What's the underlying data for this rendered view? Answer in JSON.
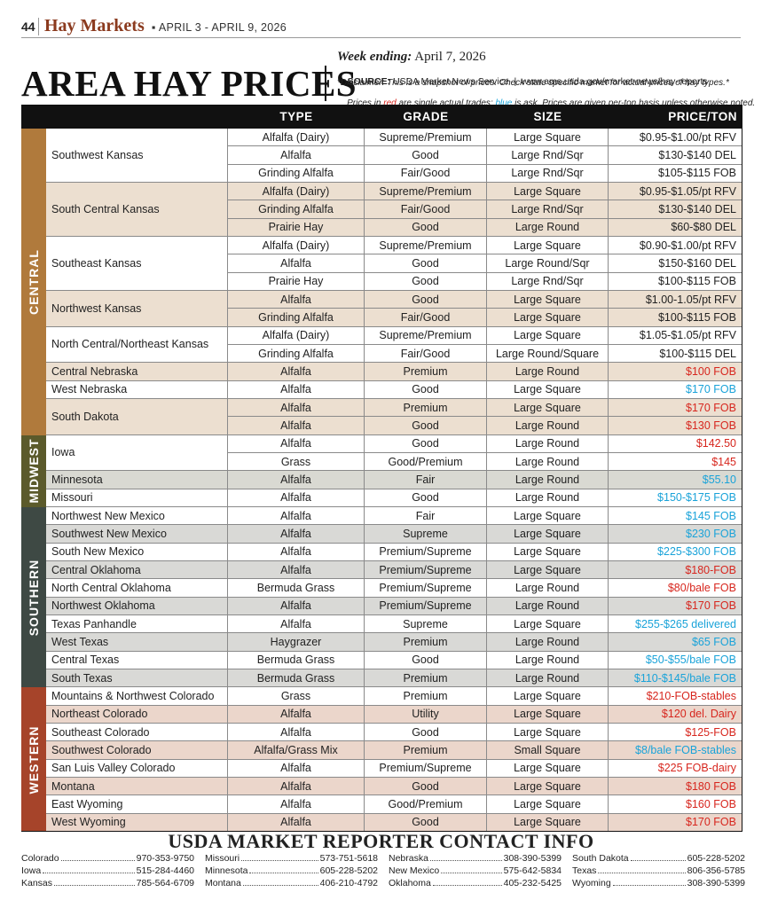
{
  "header": {
    "page_number": "44",
    "section": "Hay Markets",
    "dates": "▪ APRIL 3 - APRIL 9, 2026"
  },
  "title": "AREA HAY PRICES",
  "week_ending_label": "Week ending:",
  "week_ending": "April 7, 2026",
  "source_label": "SOURCE:",
  "source": "USDA Market News Service  |  www.ams.usda.gov/market-news/hay-reports",
  "disclaimer": "*Disclaimer: This is a snapshot of prices. Check state specific market for actual prices of hay types.*",
  "legend_note": [
    "Prices in ",
    "red",
    " are single actual trades; ",
    "blue",
    " is ask. Prices are given per-ton basis unless otherwise noted."
  ],
  "columns": [
    "TYPE",
    "GRADE",
    "SIZE",
    "PRICE/TON"
  ],
  "regions": [
    {
      "name": "CENTRAL",
      "color": "#b07a3c",
      "shade": "#ecdfd0",
      "locations": [
        {
          "name": "Southwest Kansas",
          "rows": [
            {
              "cells": [
                "Alfalfa (Dairy)",
                "Supreme/Premium",
                "Large Square",
                "$0.95-$1.00/pt RFV"
              ],
              "color": "#222222"
            },
            {
              "cells": [
                "Alfalfa",
                "Good",
                "Large Rnd/Sqr",
                "$130-$140 DEL"
              ],
              "color": "#222222"
            },
            {
              "cells": [
                "Grinding Alfalfa",
                "Fair/Good",
                "Large Rnd/Sqr",
                "$105-$115 FOB"
              ],
              "color": "#222222"
            }
          ]
        },
        {
          "name": "South Central Kansas",
          "rows": [
            {
              "cells": [
                "Alfalfa (Dairy)",
                "Supreme/Premium",
                "Large Square",
                "$0.95-$1.05/pt RFV"
              ],
              "color": "#222222"
            },
            {
              "cells": [
                "Grinding Alfalfa",
                "Fair/Good",
                "Large Rnd/Sqr",
                "$130-$140 DEL"
              ],
              "color": "#222222"
            },
            {
              "cells": [
                "Prairie Hay",
                "Good",
                "Large Round",
                "$60-$80 DEL"
              ],
              "color": "#222222"
            }
          ]
        },
        {
          "name": "Southeast Kansas",
          "rows": [
            {
              "cells": [
                "Alfalfa (Dairy)",
                "Supreme/Premium",
                "Large Square",
                "$0.90-$1.00/pt RFV"
              ],
              "color": "#222222"
            },
            {
              "cells": [
                "Alfalfa",
                "Good",
                "Large Round/Sqr",
                "$150-$160 DEL"
              ],
              "color": "#222222"
            },
            {
              "cells": [
                "Prairie Hay",
                "Good",
                "Large Rnd/Sqr",
                "$100-$115 FOB"
              ],
              "color": "#222222"
            }
          ]
        },
        {
          "name": "Northwest Kansas",
          "rows": [
            {
              "cells": [
                "Alfalfa",
                "Good",
                "Large Square",
                "$1.00-1.05/pt RFV"
              ],
              "color": "#222222"
            },
            {
              "cells": [
                "Grinding Alfalfa",
                "Fair/Good",
                "Large Square",
                "$100-$115 FOB"
              ],
              "color": "#222222"
            }
          ]
        },
        {
          "name": "North Central/Northeast Kansas",
          "rows": [
            {
              "cells": [
                "Alfalfa (Dairy)",
                "Supreme/Premium",
                "Large Square",
                "$1.05-$1.05/pt RFV"
              ],
              "color": "#222222"
            },
            {
              "cells": [
                "Grinding Alfalfa",
                "Fair/Good",
                "Large Round/Square",
                "$100-$115 DEL"
              ],
              "color": "#222222"
            }
          ]
        },
        {
          "name": "Central Nebraska",
          "rows": [
            {
              "cells": [
                "Alfalfa",
                "Premium",
                "Large Round",
                "$100 FOB"
              ],
              "color": "#d7261e"
            }
          ]
        },
        {
          "name": "West Nebraska",
          "rows": [
            {
              "cells": [
                "Alfalfa",
                "Good",
                "Large Square",
                "$170 FOB"
              ],
              "color": "#1aa3d9"
            }
          ]
        },
        {
          "name": "South Dakota",
          "rows": [
            {
              "cells": [
                "Alfalfa",
                "Premium",
                "Large Square",
                "$170 FOB"
              ],
              "color": "#d7261e"
            },
            {
              "cells": [
                "Alfalfa",
                "Good",
                "Large Round",
                "$130 FOB"
              ],
              "color": "#d7261e"
            }
          ]
        }
      ]
    },
    {
      "name": "MIDWEST",
      "color": "#5b5a2b",
      "shade": "#d9d9d2",
      "locations": [
        {
          "name": "Iowa",
          "rows": [
            {
              "cells": [
                "Alfalfa",
                "Good",
                "Large Round",
                "$142.50"
              ],
              "color": "#d7261e"
            },
            {
              "cells": [
                "Grass",
                "Good/Premium",
                "Large Round",
                "$145"
              ],
              "color": "#d7261e"
            }
          ]
        },
        {
          "name": "Minnesota",
          "rows": [
            {
              "cells": [
                "Alfalfa",
                "Fair",
                "Large Round",
                "$55.10"
              ],
              "color": "#1aa3d9"
            }
          ]
        },
        {
          "name": "Missouri",
          "rows": [
            {
              "cells": [
                "Alfalfa",
                "Good",
                "Large Round",
                "$150-$175 FOB"
              ],
              "color": "#1aa3d9"
            }
          ]
        }
      ]
    },
    {
      "name": "SOUTHERN",
      "color": "#3e4944",
      "shade": "#d9d9d6",
      "locations": [
        {
          "name": "Northwest New Mexico",
          "rows": [
            {
              "cells": [
                "Alfalfa",
                "Fair",
                "Large Square",
                "$145 FOB"
              ],
              "color": "#1aa3d9"
            }
          ]
        },
        {
          "name": "Southwest New Mexico",
          "rows": [
            {
              "cells": [
                "Alfalfa",
                "Supreme",
                "Large Square",
                "$230 FOB"
              ],
              "color": "#1aa3d9"
            }
          ]
        },
        {
          "name": "South New Mexico",
          "rows": [
            {
              "cells": [
                "Alfalfa",
                "Premium/Supreme",
                "Large Square",
                "$225-$300 FOB"
              ],
              "color": "#1aa3d9"
            }
          ]
        },
        {
          "name": "Central Oklahoma",
          "rows": [
            {
              "cells": [
                "Alfalfa",
                "Premium/Supreme",
                "Large Square",
                "$180-FOB"
              ],
              "color": "#d7261e"
            }
          ]
        },
        {
          "name": "North Central Oklahoma",
          "rows": [
            {
              "cells": [
                "Bermuda Grass",
                "Premium/Supreme",
                "Large Round",
                "$80/bale FOB"
              ],
              "color": "#d7261e"
            }
          ]
        },
        {
          "name": "Northwest Oklahoma",
          "rows": [
            {
              "cells": [
                "Alfalfa",
                "Premium/Supreme",
                "Large Round",
                "$170 FOB"
              ],
              "color": "#d7261e"
            }
          ]
        },
        {
          "name": "Texas Panhandle",
          "rows": [
            {
              "cells": [
                "Alfalfa",
                "Supreme",
                "Large Square",
                "$255-$265 delivered"
              ],
              "color": "#1aa3d9"
            }
          ]
        },
        {
          "name": "West Texas",
          "rows": [
            {
              "cells": [
                "Haygrazer",
                "Premium",
                "Large Round",
                "$65 FOB"
              ],
              "color": "#1aa3d9"
            }
          ]
        },
        {
          "name": "Central Texas",
          "rows": [
            {
              "cells": [
                "Bermuda Grass",
                "Good",
                "Large Round",
                "$50-$55/bale FOB"
              ],
              "color": "#1aa3d9"
            }
          ]
        },
        {
          "name": "South Texas",
          "rows": [
            {
              "cells": [
                "Bermuda Grass",
                "Premium",
                "Large Round",
                "$110-$145/bale FOB"
              ],
              "color": "#1aa3d9"
            }
          ]
        }
      ]
    },
    {
      "name": "WESTERN",
      "color": "#a6442a",
      "shade": "#ebd6cb",
      "locations": [
        {
          "name": "Mountains & Northwest Colorado",
          "rows": [
            {
              "cells": [
                "Grass",
                "Premium",
                "Large Square",
                "$210-FOB-stables"
              ],
              "color": "#d7261e"
            }
          ]
        },
        {
          "name": "Northeast Colorado",
          "rows": [
            {
              "cells": [
                "Alfalfa",
                "Utility",
                "Large Square",
                "$120 del. Dairy"
              ],
              "color": "#d7261e"
            }
          ]
        },
        {
          "name": "Southeast Colorado",
          "rows": [
            {
              "cells": [
                "Alfalfa",
                "Good",
                "Large Square",
                "$125-FOB"
              ],
              "color": "#d7261e"
            }
          ]
        },
        {
          "name": "Southwest Colorado",
          "rows": [
            {
              "cells": [
                "Alfalfa/Grass Mix",
                "Premium",
                "Small Square",
                "$8/bale FOB-stables"
              ],
              "color": "#1aa3d9"
            }
          ]
        },
        {
          "name": "San Luis Valley Colorado",
          "rows": [
            {
              "cells": [
                "Alfalfa",
                "Premium/Supreme",
                "Large Square",
                "$225 FOB-dairy"
              ],
              "color": "#d7261e"
            }
          ]
        },
        {
          "name": "Montana",
          "rows": [
            {
              "cells": [
                "Alfalfa",
                "Good",
                "Large Square",
                "$180 FOB"
              ],
              "color": "#d7261e"
            }
          ]
        },
        {
          "name": "East Wyoming",
          "rows": [
            {
              "cells": [
                "Alfalfa",
                "Good/Premium",
                "Large Square",
                "$160 FOB"
              ],
              "color": "#d7261e"
            }
          ]
        },
        {
          "name": "West Wyoming",
          "rows": [
            {
              "cells": [
                "Alfalfa",
                "Good",
                "Large Square",
                "$170 FOB"
              ],
              "color": "#d7261e"
            }
          ]
        }
      ]
    }
  ],
  "contacts_title": "USDA MARKET REPORTER CONTACT INFO",
  "contacts": [
    [
      {
        "state": "Colorado",
        "phone": "970-353-9750"
      },
      {
        "state": "Iowa",
        "phone": "515-284-4460"
      },
      {
        "state": "Kansas",
        "phone": "785-564-6709"
      }
    ],
    [
      {
        "state": "Missouri",
        "phone": "573-751-5618"
      },
      {
        "state": "Minnesota",
        "phone": "605-228-5202"
      },
      {
        "state": "Montana",
        "phone": "406-210-4792"
      }
    ],
    [
      {
        "state": "Nebraska",
        "phone": "308-390-5399"
      },
      {
        "state": "New Mexico",
        "phone": "575-642-5834"
      },
      {
        "state": "Oklahoma",
        "phone": "405-232-5425"
      }
    ],
    [
      {
        "state": "South Dakota",
        "phone": "605-228-5202"
      },
      {
        "state": "Texas",
        "phone": "806-356-5785"
      },
      {
        "state": "Wyoming",
        "phone": "308-390-5399"
      }
    ]
  ]
}
